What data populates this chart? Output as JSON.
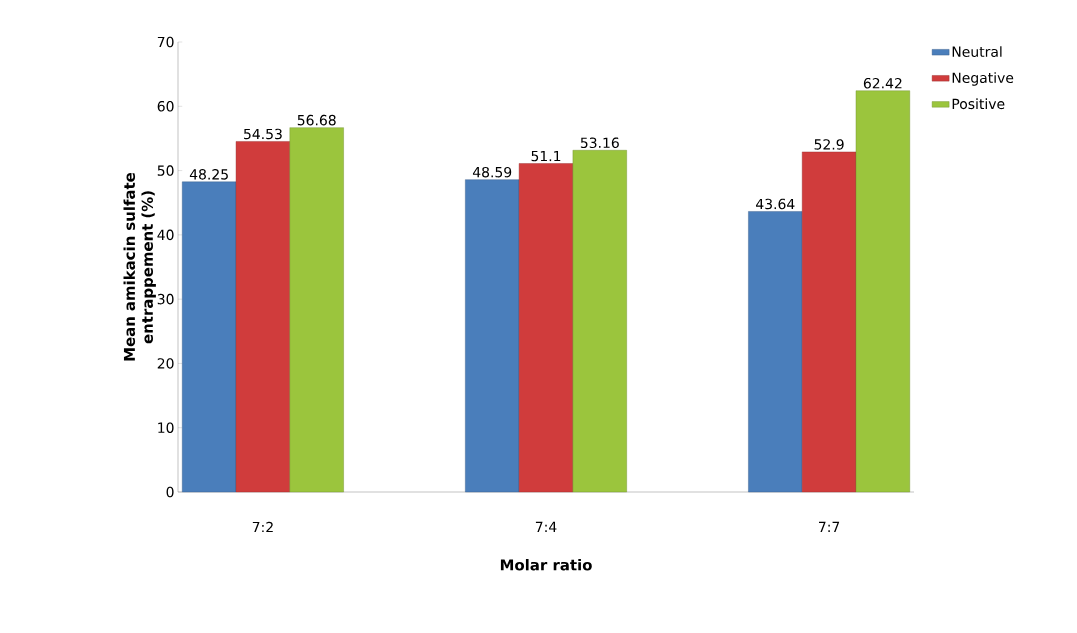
{
  "chart_data": {
    "type": "bar",
    "xlabel": "Molar ratio",
    "ylabel": "Mean amikacin sulfate entrappement (%)",
    "categories": [
      "7:2",
      "7:4",
      "7:7"
    ],
    "series": [
      {
        "name": "Neutral",
        "color": "#4a7ebb",
        "values": [
          48.25,
          48.59,
          43.64
        ]
      },
      {
        "name": "Negative",
        "color": "#d03c3c",
        "values": [
          54.53,
          51.1,
          52.9
        ]
      },
      {
        "name": "Positive",
        "color": "#9bc53d",
        "values": [
          56.68,
          53.16,
          62.42
        ]
      }
    ],
    "ylim": [
      0,
      70
    ],
    "yticks": [
      0,
      10,
      20,
      30,
      40,
      50,
      60,
      70
    ],
    "data_labels": true,
    "legend": "top right",
    "grid": false
  }
}
